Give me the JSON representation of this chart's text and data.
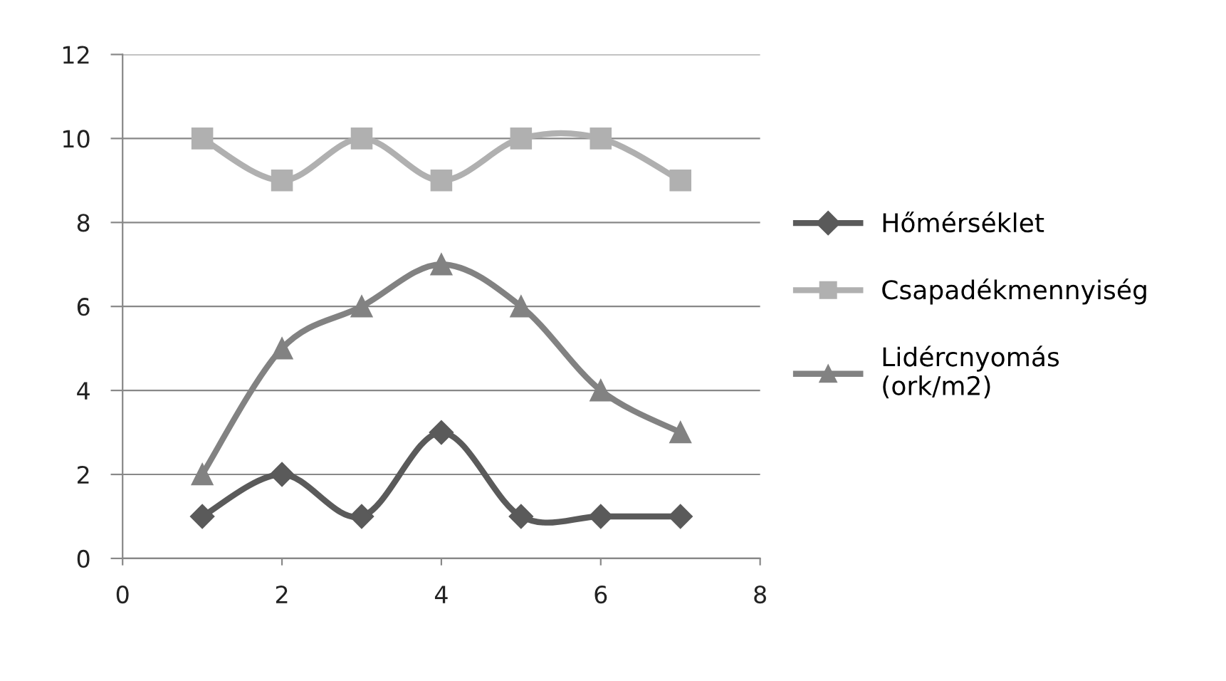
{
  "chart_data": {
    "type": "line",
    "x": [
      1,
      2,
      3,
      4,
      5,
      6,
      7
    ],
    "series": [
      {
        "name": "Hőmérséklet",
        "color": "#5a5a5a",
        "marker": "diamond",
        "values": [
          1,
          2,
          1,
          3,
          1,
          1,
          1
        ]
      },
      {
        "name": "Csapadékmennyiség",
        "color": "#b0b0b0",
        "marker": "square",
        "values": [
          10,
          9,
          10,
          9,
          10,
          10,
          9
        ]
      },
      {
        "name": "Lidércnyomás (ork/m2)",
        "color": "#828282",
        "marker": "triangle",
        "values": [
          2,
          5,
          6,
          7,
          6,
          4,
          3
        ]
      }
    ],
    "xlim": [
      0,
      8
    ],
    "xticks": [
      0,
      2,
      4,
      6,
      8
    ],
    "ylim": [
      0,
      12
    ],
    "yticks": [
      0,
      2,
      4,
      6,
      8,
      10,
      12
    ],
    "grid": "y",
    "legend": "right",
    "line_style": "solid"
  }
}
